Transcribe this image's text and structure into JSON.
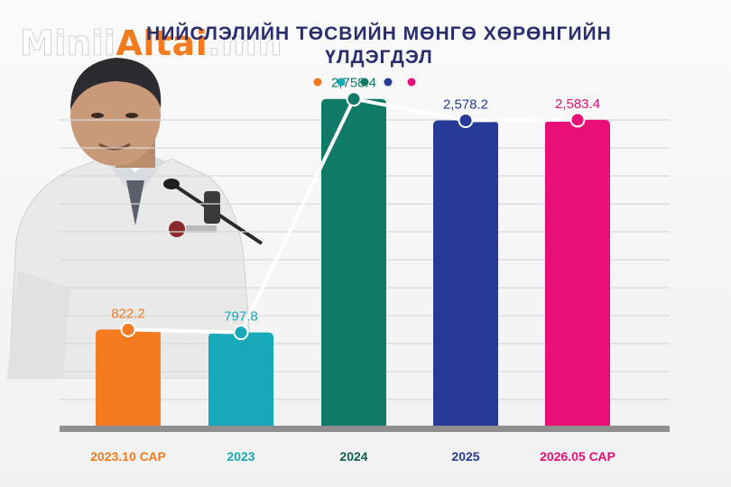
{
  "brand": {
    "part1": "Minii",
    "part2": "Altai",
    "part3": ".mn"
  },
  "title": {
    "line1": "НИЙСЛЭЛИЙН ТӨСВИЙН МӨНГӨ ХӨРӨНГИЙН",
    "line2": "ҮЛДЭГДЭЛ"
  },
  "chart_data": {
    "type": "bar",
    "title": "НИЙСЛЭЛИЙН ТӨСВИЙН МӨНГӨ ХӨРӨНГИЙН ҮЛДЭГДЭЛ",
    "categories": [
      "2023.10 САР",
      "2023",
      "2024",
      "2025",
      "2026.05 САР"
    ],
    "values": [
      822.2,
      797.8,
      2758.4,
      2578.2,
      2583.4
    ],
    "value_labels": [
      "822.2",
      "797.8",
      "2,758.4",
      "2,578.2",
      "2,583.4"
    ],
    "colors": [
      "#f47b20",
      "#17a9b8",
      "#0f7a66",
      "#263a97",
      "#ea0f76"
    ],
    "overlay": "line",
    "ylim": [
      0,
      3150
    ],
    "grid": true,
    "legend": "top-center (color dots)",
    "xlabel": "",
    "ylabel": ""
  }
}
